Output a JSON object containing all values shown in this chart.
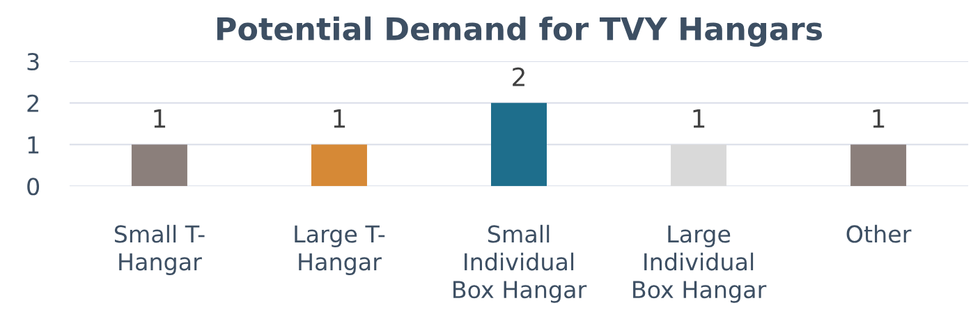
{
  "chart_data": {
    "type": "bar",
    "title": "Potential Demand for TVY Hangars",
    "categories": [
      "Small T-\nHangar",
      "Large T-\nHangar",
      "Small\nIndividual\nBox Hangar",
      "Large\nIndividual\nBox Hangar",
      "Other"
    ],
    "values": [
      1,
      1,
      2,
      1,
      1
    ],
    "colors": [
      "#8b7f7b",
      "#d68936",
      "#1e6e8c",
      "#d9d9d9",
      "#8b7f7b"
    ],
    "ylim": [
      0,
      3
    ],
    "yticks": [
      0,
      1,
      2,
      3
    ],
    "grid": "y",
    "data_labels": true
  }
}
